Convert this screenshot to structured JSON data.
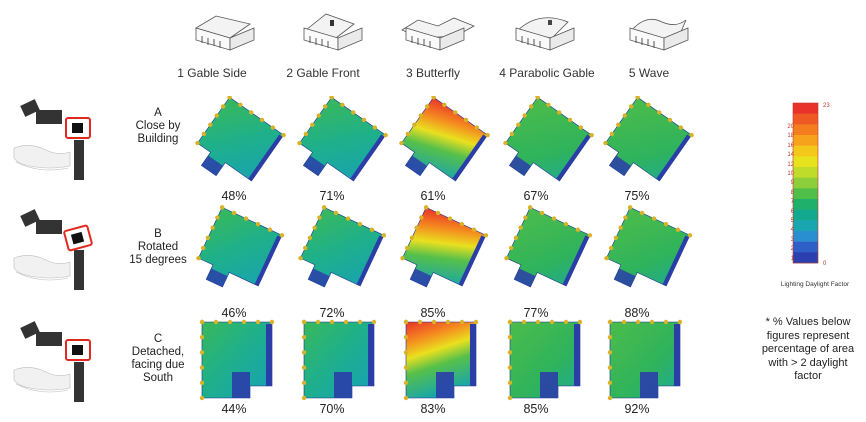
{
  "columns": [
    {
      "label": "1 Gable Side",
      "icon": "gable-side-house-icon"
    },
    {
      "label": "2 Gable Front",
      "icon": "gable-front-house-icon"
    },
    {
      "label": "3 Butterfly",
      "icon": "butterfly-house-icon"
    },
    {
      "label": "4 Parabolic Gable",
      "icon": "parabolic-gable-house-icon"
    },
    {
      "label": "5 Wave",
      "icon": "wave-house-icon"
    }
  ],
  "rows": [
    {
      "letter": "A",
      "lines": [
        "Close by",
        "Building"
      ],
      "values": [
        "48%",
        "71%",
        "61%",
        "67%",
        "75%"
      ]
    },
    {
      "letter": "B",
      "lines": [
        "Rotated",
        "15 degrees"
      ],
      "values": [
        "46%",
        "72%",
        "85%",
        "77%",
        "88%"
      ]
    },
    {
      "letter": "C",
      "lines": [
        "Detached,",
        "facing due",
        "South"
      ],
      "values": [
        "44%",
        "70%",
        "83%",
        "85%",
        "92%"
      ]
    }
  ],
  "legend": {
    "caption": "Lighting Daylight Factor",
    "max_label": "23",
    "min_label": "0",
    "tick_labels": [
      "20",
      "18",
      "16",
      "14",
      "12",
      "10",
      "9",
      "8",
      "7",
      "6",
      "5",
      "4",
      "3",
      "2",
      "1"
    ],
    "colors": [
      "#e8322a",
      "#ef5a24",
      "#f47d20",
      "#f7a21c",
      "#f4c81b",
      "#e6e21e",
      "#bfdc2a",
      "#8ccf3a",
      "#4fbf48",
      "#1fb06b",
      "#13a98f",
      "#1aa6b0",
      "#2a8fd0",
      "#2d5fc6",
      "#2c3fae"
    ]
  },
  "note": [
    "* % Values below",
    "figures represent",
    "percentage of area",
    "with > 2 daylight",
    "factor"
  ],
  "colors": {
    "site_outline": "#e02a20",
    "plan_dark": "#2b3ea8",
    "plan_teal": "#1aa6a0",
    "plan_green": "#3bb55a",
    "plan_hot": "#e8322a",
    "dots": "#d8b32a"
  }
}
